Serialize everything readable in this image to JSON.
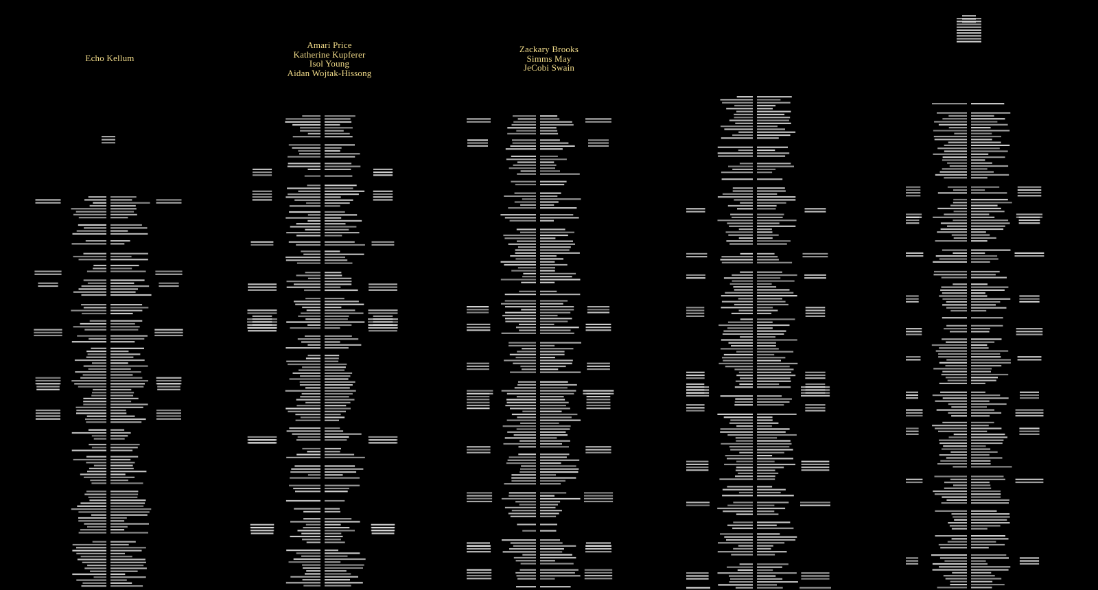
{
  "page": {
    "background": "#000000",
    "headline_color": "#f2dc8a",
    "credit_color": "#e8e8e8"
  },
  "columns": [
    {
      "id": "col-1",
      "headline_names": [
        "Echo Kellum"
      ]
    },
    {
      "id": "col-2",
      "headline_names": [
        "Amari Price",
        "Katherine Kupferer",
        "Isol Young",
        "Aidan Wojtak-Hissong"
      ]
    },
    {
      "id": "col-3",
      "headline_names": [
        "Zackary Brooks",
        "Simms May",
        "JeCobi Swain"
      ]
    },
    {
      "id": "col-4",
      "headline_names": []
    },
    {
      "id": "col-5",
      "headline_names": []
    }
  ]
}
